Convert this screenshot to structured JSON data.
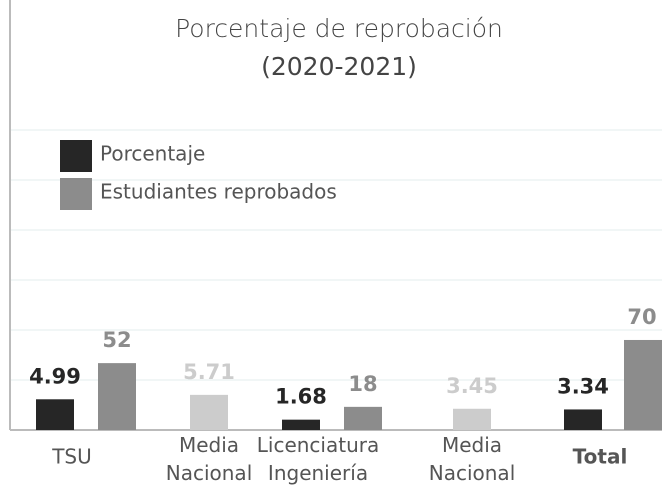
{
  "chart_data": {
    "type": "bar",
    "title": "Porcentaje de reprobación",
    "subtitle": "(2020-2021)",
    "categories": [
      "TSU",
      "Media Nacional",
      "Licenciatura Ingeniería",
      "Media Nacional",
      "Total"
    ],
    "bold_categories": [
      false,
      false,
      false,
      false,
      true
    ],
    "series": [
      {
        "name": "Porcentaje",
        "color": "#262626",
        "axis": "y2",
        "values": [
          4.99,
          5.71,
          1.68,
          3.45,
          3.34
        ],
        "colors": [
          "#262626",
          "#cccccc",
          "#262626",
          "#cccccc",
          "#262626"
        ],
        "label_colors": [
          "#262626",
          "#cccccc",
          "#262626",
          "#cccccc",
          "#262626"
        ]
      },
      {
        "name": "Estudiantes reprobados",
        "color": "#8c8c8c",
        "values": [
          52,
          null,
          18,
          null,
          70
        ],
        "colors": [
          "#8c8c8c",
          "#8c8c8c",
          "#8c8c8c",
          "#8c8c8c",
          "#8c8c8c"
        ],
        "label_colors": [
          "#8c8c8c",
          "#8c8c8c",
          "#8c8c8c",
          "#8c8c8c",
          "#8c8c8c"
        ]
      }
    ],
    "ylim": [
      0,
      311
    ],
    "y2lim": [
      0,
      65
    ],
    "grid": true,
    "legend": "upper left"
  }
}
